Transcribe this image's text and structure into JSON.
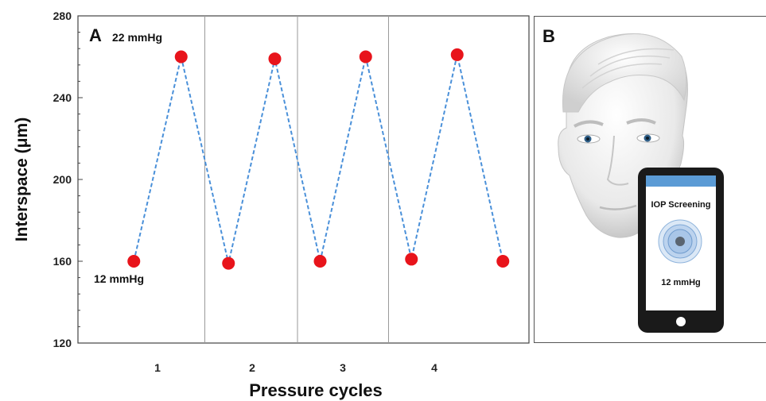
{
  "chart_data": {
    "type": "scatter",
    "panel_label": "A",
    "xlabel": "Pressure cycles",
    "ylabel": "Interspace (μm)",
    "ylim": [
      120,
      280
    ],
    "yticks": [
      "120",
      "160",
      "200",
      "240",
      "280"
    ],
    "x_categories": [
      "1",
      "2",
      "3",
      "4"
    ],
    "line_style": "dashed",
    "line_color": "#4a90d9",
    "marker_color": "#e8141b",
    "grid": false,
    "series": [
      {
        "points": [
          {
            "cycle_pos": 0.75,
            "y": 160
          },
          {
            "cycle_pos": 1.25,
            "y": 260
          },
          {
            "cycle_pos": 1.75,
            "y": 159
          },
          {
            "cycle_pos": 2.25,
            "y": 259
          },
          {
            "cycle_pos": 2.75,
            "y": 160
          },
          {
            "cycle_pos": 3.25,
            "y": 260
          },
          {
            "cycle_pos": 3.75,
            "y": 161
          },
          {
            "cycle_pos": 4.25,
            "y": 261
          },
          {
            "cycle_pos": 4.75,
            "y": 160
          }
        ]
      }
    ],
    "annotations": {
      "high": "22 mmHg",
      "low": "12 mmHg"
    }
  },
  "panel_b": {
    "label": "B",
    "phone_title": "IOP Screening",
    "phone_reading": "12 mmHg",
    "phone_header_color": "#5b9bd5",
    "phone_body_color": "#1a1a1a"
  }
}
